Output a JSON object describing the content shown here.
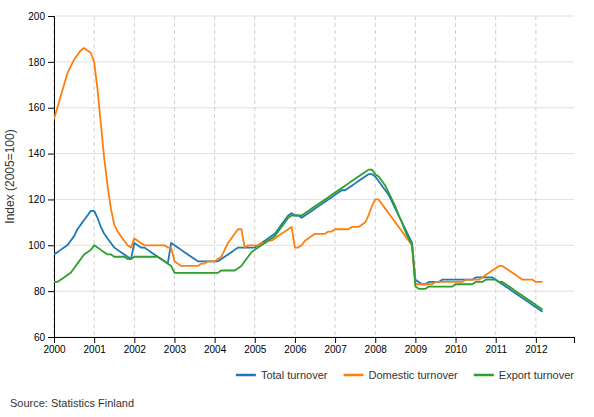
{
  "chart_data": {
    "type": "line",
    "ylabel": "Index (2005=100)",
    "annotations": [
      "Source: Statistics Finland"
    ],
    "xlim": [
      2000.0,
      2012.95
    ],
    "xticks": [
      2000,
      2001,
      2002,
      2003,
      2004,
      2005,
      2006,
      2007,
      2008,
      2009,
      2010,
      2011,
      2012
    ],
    "ylim": [
      60,
      200
    ],
    "yticks": [
      60,
      80,
      100,
      120,
      140,
      160,
      180,
      200
    ],
    "grid": true,
    "legend": "bottom-right",
    "x": [
      2000,
      2000.0833,
      2000.1667,
      2000.25,
      2000.3333,
      2000.4167,
      2000.5,
      2000.5833,
      2000.6667,
      2000.75,
      2000.8333,
      2000.9167,
      2001,
      2001.0833,
      2001.1667,
      2001.25,
      2001.3333,
      2001.4167,
      2001.5,
      2001.5833,
      2001.6667,
      2001.75,
      2001.8333,
      2001.9167,
      2002,
      2002.0833,
      2002.1667,
      2002.25,
      2002.3333,
      2002.4167,
      2002.5,
      2002.5833,
      2002.6667,
      2002.75,
      2002.8333,
      2002.9167,
      2003,
      2003.0833,
      2003.1667,
      2003.25,
      2003.3333,
      2003.4167,
      2003.5,
      2003.5833,
      2003.6667,
      2003.75,
      2003.8333,
      2003.9167,
      2004,
      2004.0833,
      2004.1667,
      2004.25,
      2004.3333,
      2004.4167,
      2004.5,
      2004.5833,
      2004.6667,
      2004.75,
      2004.8333,
      2004.9167,
      2005,
      2005.0833,
      2005.1667,
      2005.25,
      2005.3333,
      2005.4167,
      2005.5,
      2005.5833,
      2005.6667,
      2005.75,
      2005.8333,
      2005.9167,
      2006,
      2006.0833,
      2006.1667,
      2006.25,
      2006.3333,
      2006.4167,
      2006.5,
      2006.5833,
      2006.6667,
      2006.75,
      2006.8333,
      2006.9167,
      2007,
      2007.0833,
      2007.1667,
      2007.25,
      2007.3333,
      2007.4167,
      2007.5,
      2007.5833,
      2007.6667,
      2007.75,
      2007.8333,
      2007.9167,
      2008,
      2008.0833,
      2008.1667,
      2008.25,
      2008.3333,
      2008.4167,
      2008.5,
      2008.5833,
      2008.6667,
      2008.75,
      2008.8333,
      2008.9167,
      2009,
      2009.0833,
      2009.1667,
      2009.25,
      2009.3333,
      2009.4167,
      2009.5,
      2009.5833,
      2009.6667,
      2009.75,
      2009.8333,
      2009.9167,
      2010,
      2010.0833,
      2010.1667,
      2010.25,
      2010.3333,
      2010.4167,
      2010.5,
      2010.5833,
      2010.6667,
      2010.75,
      2010.8333,
      2010.9167,
      2011,
      2011.0833,
      2011.1667,
      2011.25,
      2011.3333,
      2011.4167,
      2011.5,
      2011.5833,
      2011.6667,
      2011.75,
      2011.8333,
      2011.9167,
      2012,
      2012.0833,
      2012.1667
    ],
    "series": [
      {
        "name": "Total turnover",
        "values": [
          96,
          97,
          98,
          99,
          100,
          102,
          104,
          107,
          109,
          111,
          113,
          115,
          115,
          112,
          108,
          105,
          103,
          101,
          99,
          98,
          97,
          96,
          95,
          94,
          101,
          100,
          99,
          99,
          98,
          97,
          96,
          95,
          94,
          93,
          92,
          101,
          100,
          99,
          98,
          97,
          96,
          95,
          94,
          93,
          93,
          93,
          93,
          93,
          93,
          93,
          94,
          95,
          96,
          97,
          98,
          99,
          99,
          99,
          99,
          99,
          99,
          100,
          101,
          102,
          103,
          104,
          105,
          107,
          109,
          111,
          113,
          114,
          113,
          113,
          112,
          113,
          114,
          115,
          116,
          117,
          118,
          119,
          120,
          121,
          122,
          123,
          124,
          124,
          125,
          126,
          127,
          128,
          129,
          130,
          131,
          131,
          130,
          128,
          126,
          124,
          122,
          119,
          116,
          113,
          110,
          107,
          104,
          101,
          85,
          84,
          83,
          83,
          84,
          84,
          84,
          84,
          85,
          85,
          85,
          85,
          85,
          85,
          85,
          85,
          85,
          85,
          86,
          86,
          86,
          86,
          86,
          86,
          85,
          84,
          83,
          82,
          81,
          80,
          79,
          78,
          77,
          76,
          75,
          74,
          73,
          72,
          71
        ]
      },
      {
        "name": "Domestic turnover",
        "values": [
          155,
          160,
          165,
          170,
          175,
          178,
          181,
          183,
          185,
          186,
          185,
          184,
          180,
          168,
          153,
          138,
          126,
          116,
          109,
          106,
          104,
          102,
          100,
          99,
          103,
          102,
          101,
          100,
          100,
          100,
          100,
          100,
          100,
          100,
          99,
          99,
          93,
          92,
          91,
          91,
          91,
          91,
          91,
          91,
          92,
          92,
          93,
          93,
          93,
          94,
          95,
          98,
          101,
          103,
          105,
          107,
          107,
          99,
          100,
          100,
          100,
          100,
          101,
          101,
          102,
          102,
          103,
          104,
          105,
          106,
          107,
          108,
          99,
          99,
          100,
          102,
          103,
          104,
          105,
          105,
          105,
          105,
          106,
          106,
          107,
          107,
          107,
          107,
          107,
          108,
          108,
          108,
          109,
          110,
          113,
          117,
          120,
          120,
          118,
          116,
          114,
          112,
          110,
          108,
          106,
          104,
          102,
          100,
          83,
          83,
          83,
          83,
          83,
          83,
          84,
          84,
          84,
          84,
          84,
          84,
          84,
          84,
          84,
          85,
          85,
          85,
          85,
          85,
          86,
          87,
          88,
          89,
          90,
          91,
          91,
          90,
          89,
          88,
          87,
          86,
          85,
          85,
          85,
          85,
          84,
          84,
          84
        ]
      },
      {
        "name": "Export turnover",
        "values": [
          84,
          84,
          85,
          86,
          87,
          88,
          90,
          92,
          94,
          96,
          97,
          98,
          100,
          99,
          98,
          97,
          96,
          96,
          95,
          95,
          95,
          95,
          94,
          94,
          95,
          95,
          95,
          95,
          95,
          95,
          95,
          95,
          94,
          93,
          92,
          91,
          88,
          88,
          88,
          88,
          88,
          88,
          88,
          88,
          88,
          88,
          88,
          88,
          88,
          88,
          89,
          89,
          89,
          89,
          89,
          90,
          91,
          93,
          95,
          97,
          98,
          99,
          100,
          101,
          102,
          103,
          104,
          106,
          108,
          110,
          112,
          113,
          113,
          113,
          113,
          114,
          115,
          116,
          117,
          118,
          119,
          120,
          121,
          122,
          123,
          124,
          125,
          126,
          127,
          128,
          129,
          130,
          131,
          132,
          133,
          133,
          131,
          130,
          128,
          126,
          123,
          120,
          117,
          113,
          110,
          106,
          103,
          100,
          82,
          81,
          81,
          81,
          82,
          82,
          82,
          82,
          82,
          82,
          82,
          82,
          83,
          83,
          83,
          83,
          83,
          83,
          84,
          84,
          84,
          85,
          85,
          85,
          85,
          84,
          84,
          83,
          82,
          81,
          80,
          79,
          78,
          77,
          76,
          75,
          74,
          73,
          72
        ]
      }
    ]
  }
}
